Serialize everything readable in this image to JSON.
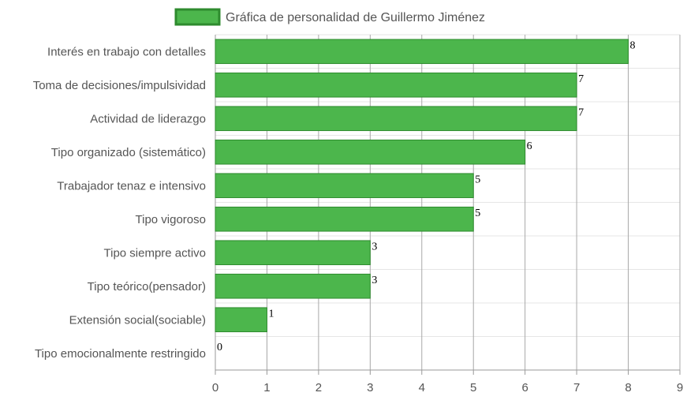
{
  "chart_data": {
    "type": "bar",
    "orientation": "horizontal",
    "categories": [
      "Interés en trabajo con detalles",
      "Toma de decisiones/impulsividad",
      "Actividad de liderazgo",
      "Tipo organizado (sistemático)",
      "Trabajador tenaz e intensivo",
      "Tipo vigoroso",
      "Tipo siempre activo",
      "Tipo teórico(pensador)",
      "Extensión social(sociable)",
      "Tipo emocionalmente restringido"
    ],
    "series": [
      {
        "name": "Gráfica de personalidad de Guillermo Jiménez",
        "values": [
          8,
          7,
          7,
          6,
          5,
          5,
          3,
          3,
          1,
          0
        ],
        "color": "#4cb64c",
        "border_color": "#2e8b2e"
      }
    ],
    "xlim": [
      0,
      9
    ],
    "xticks": [
      "0",
      "1",
      "2",
      "3",
      "4",
      "5",
      "6",
      "7",
      "8",
      "9"
    ],
    "legend_position": "top",
    "grid": true,
    "show_data_labels": true
  }
}
